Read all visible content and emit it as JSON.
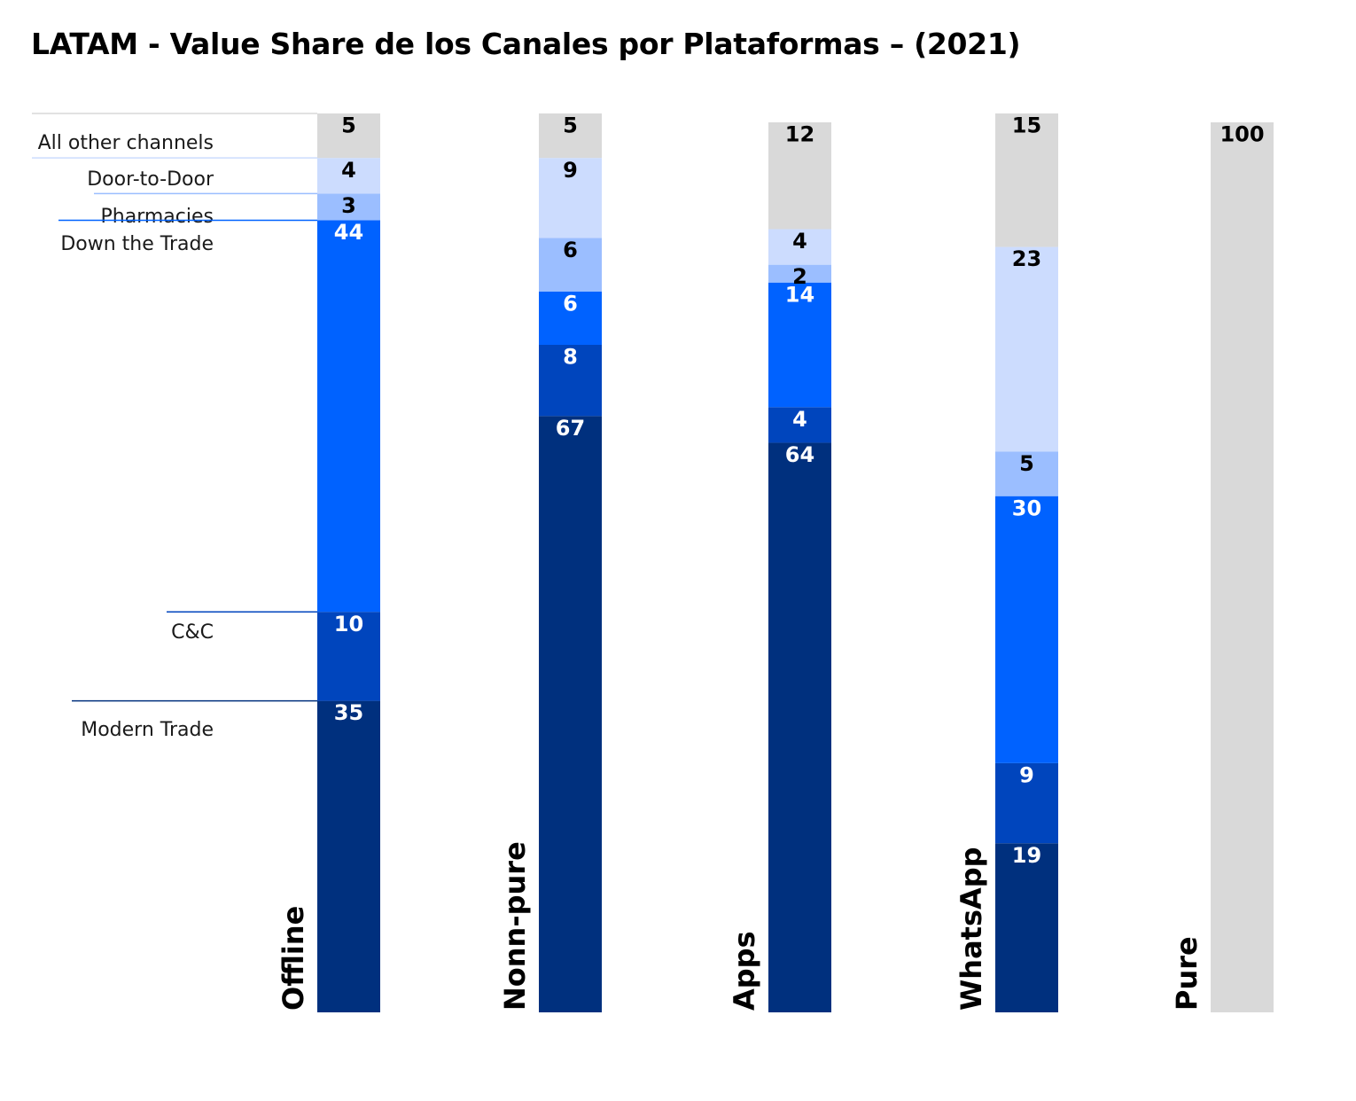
{
  "title": "LATAM - Value Share de los Canales por Plataformas – (2021)",
  "chart_data": {
    "type": "bar",
    "stacked": true,
    "title": "LATAM - Value Share de los Canales por Plataformas – (2021)",
    "xlabel": "",
    "ylabel": "",
    "ylim": [
      0,
      100
    ],
    "grid": false,
    "legend": "left",
    "categories": [
      "Offline",
      "Nonn-pure",
      "Apps",
      "WhatsApp",
      "Pure"
    ],
    "series": [
      {
        "name": "Modern Trade",
        "color": "#00307e",
        "label_color": "#ffffff",
        "values": [
          35,
          67,
          64,
          19,
          null
        ]
      },
      {
        "name": "C&C",
        "color": "#0045bd",
        "label_color": "#ffffff",
        "values": [
          10,
          8,
          4,
          9,
          null
        ]
      },
      {
        "name": "Down the Trade",
        "color": "#0062ff",
        "label_color": "#ffffff",
        "values": [
          44,
          6,
          14,
          30,
          null
        ]
      },
      {
        "name": "Pharmacies",
        "color": "#9bbeff",
        "label_color": "#000000",
        "values": [
          3,
          6,
          2,
          5,
          null
        ]
      },
      {
        "name": "Door-to-Door",
        "color": "#ccdcfe",
        "label_color": "#000000",
        "values": [
          4,
          9,
          4,
          23,
          null
        ]
      },
      {
        "name": "All other channels",
        "color": "#d9d9d9",
        "label_color": "#000000",
        "values": [
          5,
          5,
          12,
          15,
          100
        ]
      }
    ]
  }
}
